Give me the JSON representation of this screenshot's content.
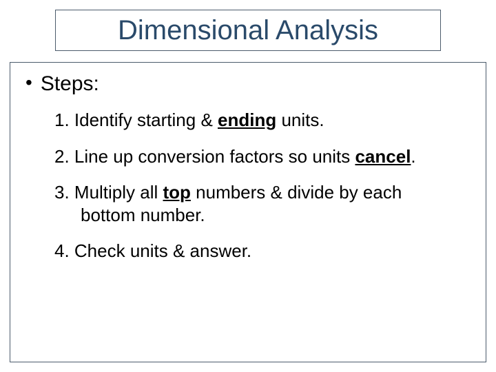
{
  "slide": {
    "title": "Dimensional Analysis",
    "title_color": "#2a4a6a",
    "title_fontsize": 40,
    "border_color": "#4a5a6a",
    "background_color": "#ffffff",
    "bullet_label": "Steps:",
    "bullet_fontsize": 30,
    "step_fontsize": 26,
    "steps": {
      "s1_pre": "1. Identify starting & ",
      "s1_u": "ending",
      "s1_post": " units.",
      "s2_pre": "2. Line up conversion factors so units ",
      "s2_u": "cancel",
      "s2_post": ".",
      "s3_pre": "3. Multiply all ",
      "s3_u": "top",
      "s3_mid": " numbers & divide by each",
      "s3_line2": "bottom number.",
      "s4": "4. Check units & answer."
    }
  }
}
